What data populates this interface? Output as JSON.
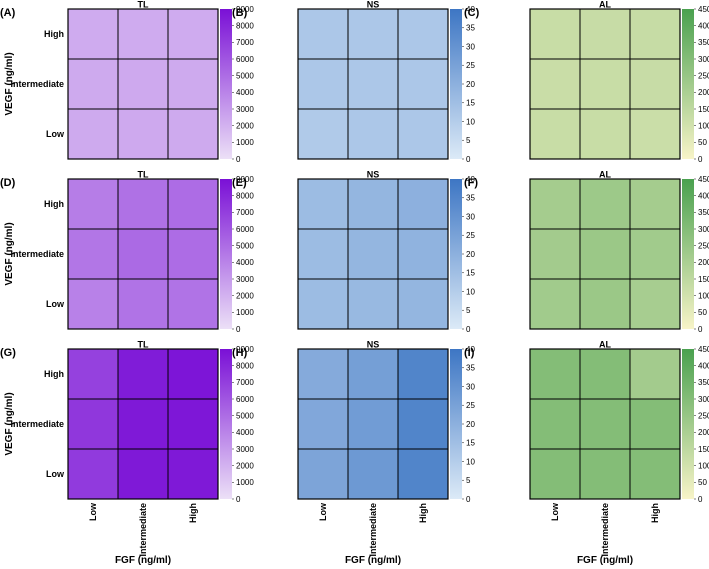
{
  "figure": {
    "ylabel": "VEGF (ng/ml)",
    "xlabel": "FGF (ng/ml)",
    "row_categories": [
      "High",
      "Intermediate",
      "Low"
    ],
    "col_categories": [
      "Low",
      "Intermediate",
      "High"
    ]
  },
  "colorbars": {
    "TL": {
      "ticks": [
        "0",
        "1000",
        "2000",
        "3000",
        "4000",
        "5000",
        "6000",
        "7000",
        "8000",
        "9000"
      ],
      "min": 0,
      "max": 9000,
      "low_color": "#ece0f7",
      "high_color": "#7a10d6"
    },
    "NS": {
      "ticks": [
        "0",
        "5",
        "10",
        "15",
        "20",
        "25",
        "30",
        "35",
        "40"
      ],
      "min": 0,
      "max": 40,
      "low_color": "#dceaf7",
      "high_color": "#3d76c4"
    },
    "AL": {
      "ticks": [
        "0",
        "50",
        "100",
        "150",
        "200",
        "250",
        "300",
        "350",
        "400",
        "450"
      ],
      "min": 0,
      "max": 450,
      "low_color": "#f8f4c8",
      "high_color": "#4aa14f"
    }
  },
  "chart_data": [
    {
      "type": "heatmap",
      "panel": "(A)",
      "title": "TL",
      "metric": "TL",
      "rows": [
        "High",
        "Intermediate",
        "Low"
      ],
      "cols": [
        "Low",
        "Intermediate",
        "High"
      ],
      "values": [
        [
          2300,
          2300,
          2300
        ],
        [
          2350,
          2400,
          2350
        ],
        [
          2350,
          2400,
          2350
        ]
      ]
    },
    {
      "type": "heatmap",
      "panel": "(B)",
      "title": "NS",
      "metric": "NS",
      "rows": [
        "High",
        "Intermediate",
        "Low"
      ],
      "cols": [
        "Low",
        "Intermediate",
        "High"
      ],
      "values": [
        [
          12,
          12,
          12
        ],
        [
          12,
          12,
          12
        ],
        [
          11,
          12,
          12
        ]
      ]
    },
    {
      "type": "heatmap",
      "panel": "(C)",
      "title": "AL",
      "metric": "AL",
      "rows": [
        "High",
        "Intermediate",
        "Low"
      ],
      "cols": [
        "Low",
        "Intermediate",
        "High"
      ],
      "values": [
        [
          125,
          128,
          130
        ],
        [
          122,
          125,
          128
        ],
        [
          125,
          125,
          120
        ]
      ]
    },
    {
      "type": "heatmap",
      "panel": "(D)",
      "title": "TL",
      "metric": "TL",
      "rows": [
        "High",
        "Intermediate",
        "Low"
      ],
      "cols": [
        "Low",
        "Intermediate",
        "High"
      ],
      "values": [
        [
          4300,
          4800,
          5000
        ],
        [
          4600,
          5100,
          5000
        ],
        [
          4100,
          4700,
          4700
        ]
      ]
    },
    {
      "type": "heatmap",
      "panel": "(E)",
      "title": "NS",
      "metric": "NS",
      "rows": [
        "High",
        "Intermediate",
        "Low"
      ],
      "cols": [
        "Low",
        "Intermediate",
        "High"
      ],
      "values": [
        [
          16,
          18,
          20
        ],
        [
          16,
          18,
          19
        ],
        [
          16,
          17,
          18
        ]
      ]
    },
    {
      "type": "heatmap",
      "panel": "(F)",
      "title": "AL",
      "metric": "AL",
      "rows": [
        "High",
        "Intermediate",
        "Low"
      ],
      "cols": [
        "Low",
        "Intermediate",
        "High"
      ],
      "values": [
        [
          215,
          235,
          215
        ],
        [
          220,
          240,
          225
        ],
        [
          225,
          240,
          210
        ]
      ]
    },
    {
      "type": "heatmap",
      "panel": "(G)",
      "title": "TL",
      "metric": "TL",
      "rows": [
        "High",
        "Intermediate",
        "Low"
      ],
      "cols": [
        "Low",
        "Intermediate",
        "High"
      ],
      "values": [
        [
          6900,
          8500,
          8800
        ],
        [
          7300,
          8600,
          8700
        ],
        [
          7200,
          8600,
          8600
        ]
      ]
    },
    {
      "type": "heatmap",
      "panel": "(H)",
      "title": "NS",
      "metric": "NS",
      "rows": [
        "High",
        "Intermediate",
        "Low"
      ],
      "cols": [
        "Low",
        "Intermediate",
        "High"
      ],
      "values": [
        [
          22,
          26,
          35
        ],
        [
          23,
          27,
          35
        ],
        [
          24,
          28,
          35
        ]
      ]
    },
    {
      "type": "heatmap",
      "panel": "(I)",
      "title": "AL",
      "metric": "AL",
      "rows": [
        "High",
        "Intermediate",
        "Low"
      ],
      "cols": [
        "Low",
        "Intermediate",
        "High"
      ],
      "values": [
        [
          300,
          300,
          220
        ],
        [
          300,
          300,
          300
        ],
        [
          300,
          300,
          300
        ]
      ]
    }
  ]
}
